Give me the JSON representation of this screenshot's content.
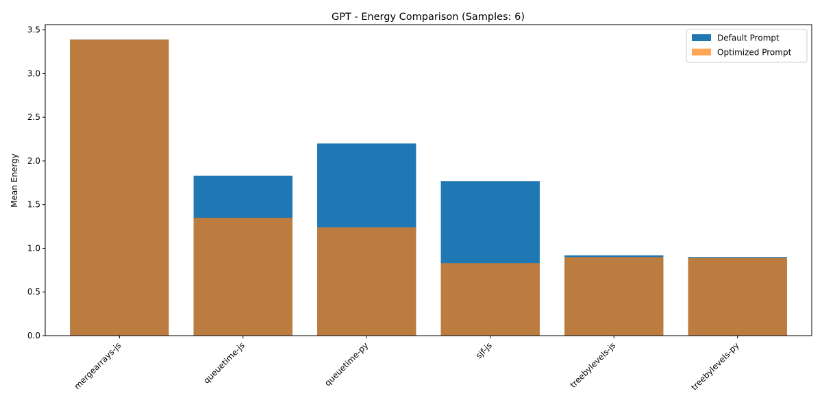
{
  "chart_data": {
    "type": "bar",
    "title": "GPT - Energy Comparison (Samples: 6)",
    "xlabel": "",
    "ylabel": "Mean Energy",
    "categories": [
      "mergearrays-js",
      "queuetime-js",
      "queuetime-py",
      "sjf-js",
      "treebylevels-js",
      "treebylevels-py"
    ],
    "series": [
      {
        "name": "Default Prompt",
        "values": [
          3.39,
          1.83,
          2.2,
          1.77,
          0.92,
          0.9
        ],
        "color": "#1f77b4",
        "opacity": 1
      },
      {
        "name": "Optimized Prompt",
        "values": [
          3.39,
          1.35,
          1.24,
          0.83,
          0.9,
          0.89
        ],
        "color": "#ff7f0e",
        "opacity": 0.7
      }
    ],
    "ylim": [
      0,
      3.56
    ],
    "yticks": [
      "0.0",
      "0.5",
      "1.0",
      "1.5",
      "2.0",
      "2.5",
      "3.0",
      "3.5"
    ],
    "grid": false,
    "legend_position": "top-right",
    "bar_mode": "overlay"
  }
}
